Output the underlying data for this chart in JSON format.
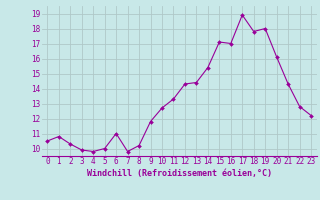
{
  "x": [
    0,
    1,
    2,
    3,
    4,
    5,
    6,
    7,
    8,
    9,
    10,
    11,
    12,
    13,
    14,
    15,
    16,
    17,
    18,
    19,
    20,
    21,
    22,
    23
  ],
  "y": [
    10.5,
    10.8,
    10.3,
    9.9,
    9.8,
    10.0,
    11.0,
    9.8,
    10.2,
    11.8,
    12.7,
    13.3,
    14.3,
    14.4,
    15.4,
    17.1,
    17.0,
    18.9,
    17.8,
    18.0,
    16.1,
    14.3,
    12.8,
    12.2
  ],
  "line_color": "#990099",
  "marker_color": "#990099",
  "bg_color": "#c8e8e8",
  "grid_color": "#b0c8c8",
  "xlabel": "Windchill (Refroidissement éolien,°C)",
  "xlabel_color": "#990099",
  "tick_color": "#990099",
  "yticks": [
    10,
    11,
    12,
    13,
    14,
    15,
    16,
    17,
    18,
    19
  ],
  "ylim": [
    9.5,
    19.5
  ],
  "xlim": [
    -0.5,
    23.5
  ],
  "tick_fontsize": 5.5,
  "xlabel_fontsize": 6.0
}
